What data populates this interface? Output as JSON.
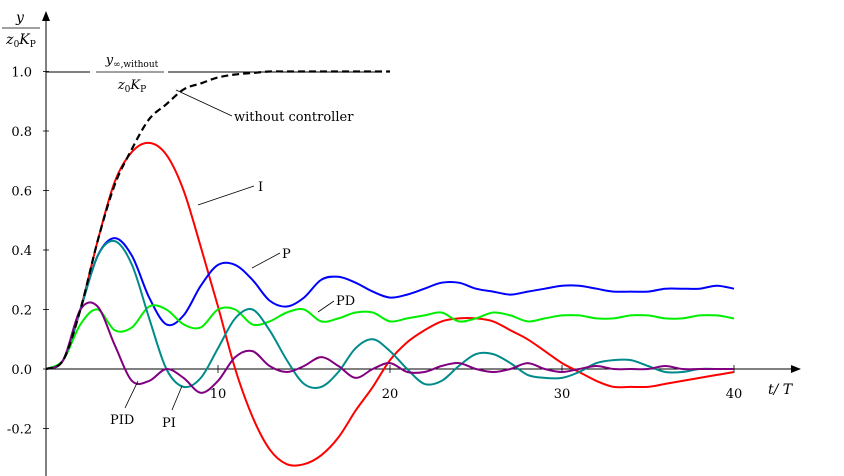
{
  "chart_data": {
    "type": "line",
    "y_axis_label": {
      "numerator": "y",
      "denominator": "z",
      "denominator_sub": "0",
      "denominator_var": "K",
      "denominator_var_sub": "P"
    },
    "x_axis_label": "t/ T",
    "xlim": [
      0,
      44
    ],
    "ylim": [
      -0.35,
      1.2
    ],
    "x_ticks": [
      {
        "value": 10,
        "label": "10"
      },
      {
        "value": 20,
        "label": "20"
      },
      {
        "value": 30,
        "label": "30"
      },
      {
        "value": 40,
        "label": "40"
      }
    ],
    "y_ticks": [
      {
        "value": 1.0,
        "label": "1.0"
      },
      {
        "value": 0.8,
        "label": "0.8"
      },
      {
        "value": 0.6,
        "label": "0.6"
      },
      {
        "value": 0.4,
        "label": "0.4"
      },
      {
        "value": 0.2,
        "label": "0.2"
      },
      {
        "value": 0.0,
        "label": "0.0"
      },
      {
        "value": -0.2,
        "label": "-0.2"
      }
    ],
    "reference_line": {
      "y": 1.0,
      "numerator": "y",
      "numerator_sub": "∞,without",
      "denominator": "z",
      "denominator_sub": "0",
      "denominator_var": "K",
      "denominator_var_sub": "P"
    },
    "series": [
      {
        "name": "without controller",
        "color": "#000000",
        "dashed": true,
        "x": [
          0,
          1,
          2,
          3,
          4,
          5,
          6,
          7,
          8,
          9,
          10,
          11,
          12,
          13,
          14,
          15,
          16,
          17,
          18,
          19,
          20
        ],
        "y": [
          0,
          0.03,
          0.2,
          0.43,
          0.62,
          0.74,
          0.84,
          0.89,
          0.94,
          0.96,
          0.98,
          0.99,
          0.995,
          1.0,
          1.0,
          1.0,
          1.0,
          1.0,
          1.0,
          1.0,
          1.0
        ]
      },
      {
        "name": "I",
        "color": "#ff0000",
        "x": [
          0,
          1,
          2,
          3,
          4,
          5,
          6,
          7,
          8,
          9,
          10,
          11,
          12,
          13,
          14,
          15,
          16,
          17,
          18,
          19,
          20,
          21,
          22,
          23,
          24,
          25,
          26,
          27,
          28,
          29,
          30,
          31,
          32,
          33,
          34,
          35,
          36,
          37,
          38,
          39,
          40
        ],
        "y": [
          0,
          0.03,
          0.2,
          0.43,
          0.63,
          0.73,
          0.76,
          0.72,
          0.6,
          0.41,
          0.21,
          0.0,
          -0.16,
          -0.27,
          -0.32,
          -0.32,
          -0.29,
          -0.23,
          -0.14,
          -0.06,
          0.03,
          0.09,
          0.13,
          0.16,
          0.17,
          0.17,
          0.16,
          0.13,
          0.1,
          0.06,
          0.02,
          -0.01,
          -0.04,
          -0.06,
          -0.06,
          -0.06,
          -0.05,
          -0.04,
          -0.03,
          -0.02,
          -0.01
        ]
      },
      {
        "name": "P",
        "color": "#0000ff",
        "x": [
          0,
          1,
          2,
          3,
          4,
          5,
          6,
          7,
          8,
          9,
          10,
          11,
          12,
          13,
          14,
          15,
          16,
          17,
          18,
          19,
          20,
          21,
          22,
          23,
          24,
          25,
          26,
          27,
          28,
          29,
          30,
          31,
          32,
          33,
          34,
          35,
          36,
          37,
          38,
          39,
          40
        ],
        "y": [
          0,
          0.03,
          0.2,
          0.38,
          0.44,
          0.38,
          0.24,
          0.15,
          0.18,
          0.28,
          0.35,
          0.35,
          0.3,
          0.23,
          0.21,
          0.24,
          0.3,
          0.31,
          0.29,
          0.26,
          0.24,
          0.25,
          0.27,
          0.29,
          0.29,
          0.27,
          0.26,
          0.25,
          0.26,
          0.27,
          0.28,
          0.28,
          0.27,
          0.26,
          0.26,
          0.26,
          0.27,
          0.27,
          0.27,
          0.28,
          0.27
        ]
      },
      {
        "name": "PD",
        "color": "#00ee00",
        "x": [
          0,
          1,
          2,
          3,
          4,
          5,
          6,
          7,
          8,
          9,
          10,
          11,
          12,
          13,
          14,
          15,
          16,
          17,
          18,
          19,
          20,
          21,
          22,
          23,
          24,
          25,
          26,
          27,
          28,
          29,
          30,
          31,
          32,
          33,
          34,
          35,
          36,
          37,
          38,
          39,
          40
        ],
        "y": [
          0,
          0.03,
          0.15,
          0.2,
          0.13,
          0.14,
          0.21,
          0.2,
          0.15,
          0.14,
          0.2,
          0.2,
          0.15,
          0.16,
          0.19,
          0.2,
          0.16,
          0.17,
          0.19,
          0.19,
          0.16,
          0.17,
          0.18,
          0.19,
          0.16,
          0.17,
          0.19,
          0.18,
          0.16,
          0.17,
          0.18,
          0.18,
          0.17,
          0.17,
          0.18,
          0.18,
          0.17,
          0.17,
          0.18,
          0.18,
          0.17
        ]
      },
      {
        "name": "PI",
        "color": "#008b8b",
        "x": [
          0,
          1,
          2,
          3,
          4,
          5,
          6,
          7,
          8,
          9,
          10,
          11,
          12,
          13,
          14,
          15,
          16,
          17,
          18,
          19,
          20,
          21,
          22,
          23,
          24,
          25,
          26,
          27,
          28,
          29,
          30,
          31,
          32,
          33,
          34,
          35,
          36,
          37,
          38,
          39,
          40
        ],
        "y": [
          0,
          0.03,
          0.2,
          0.38,
          0.43,
          0.35,
          0.17,
          0.0,
          -0.06,
          -0.03,
          0.07,
          0.17,
          0.2,
          0.13,
          0.03,
          -0.05,
          -0.06,
          -0.01,
          0.07,
          0.1,
          0.06,
          0.0,
          -0.05,
          -0.04,
          0.01,
          0.05,
          0.05,
          0.02,
          -0.02,
          -0.03,
          -0.03,
          -0.01,
          0.02,
          0.03,
          0.03,
          0.01,
          -0.01,
          -0.01,
          0.0,
          0.0,
          0.0
        ]
      },
      {
        "name": "PID",
        "color": "#800080",
        "x": [
          0,
          1,
          2,
          3,
          4,
          5,
          6,
          7,
          8,
          9,
          10,
          11,
          12,
          13,
          14,
          15,
          16,
          17,
          18,
          19,
          20,
          21,
          22,
          23,
          24,
          25,
          26,
          27,
          28,
          29,
          30,
          31,
          32,
          33,
          34,
          35,
          36,
          37,
          38,
          39,
          40
        ],
        "y": [
          0,
          0.03,
          0.2,
          0.21,
          0.08,
          -0.04,
          -0.04,
          0.0,
          -0.03,
          -0.08,
          -0.04,
          0.04,
          0.06,
          0.01,
          -0.01,
          0.01,
          0.04,
          0.01,
          -0.03,
          0.0,
          0.02,
          -0.01,
          -0.01,
          0.01,
          0.02,
          0.0,
          -0.01,
          0.0,
          0.02,
          0.0,
          -0.01,
          0.0,
          0.01,
          0.0,
          0.0,
          0.0,
          0.01,
          0.0,
          0.0,
          0.0,
          0.0
        ]
      }
    ],
    "annotations": [
      {
        "text": "without controller",
        "series": "without controller"
      },
      {
        "text": "I",
        "series": "I"
      },
      {
        "text": "P",
        "series": "P"
      },
      {
        "text": "PD",
        "series": "PD"
      },
      {
        "text": "PI",
        "series": "PI"
      },
      {
        "text": "PID",
        "series": "PID"
      }
    ]
  }
}
